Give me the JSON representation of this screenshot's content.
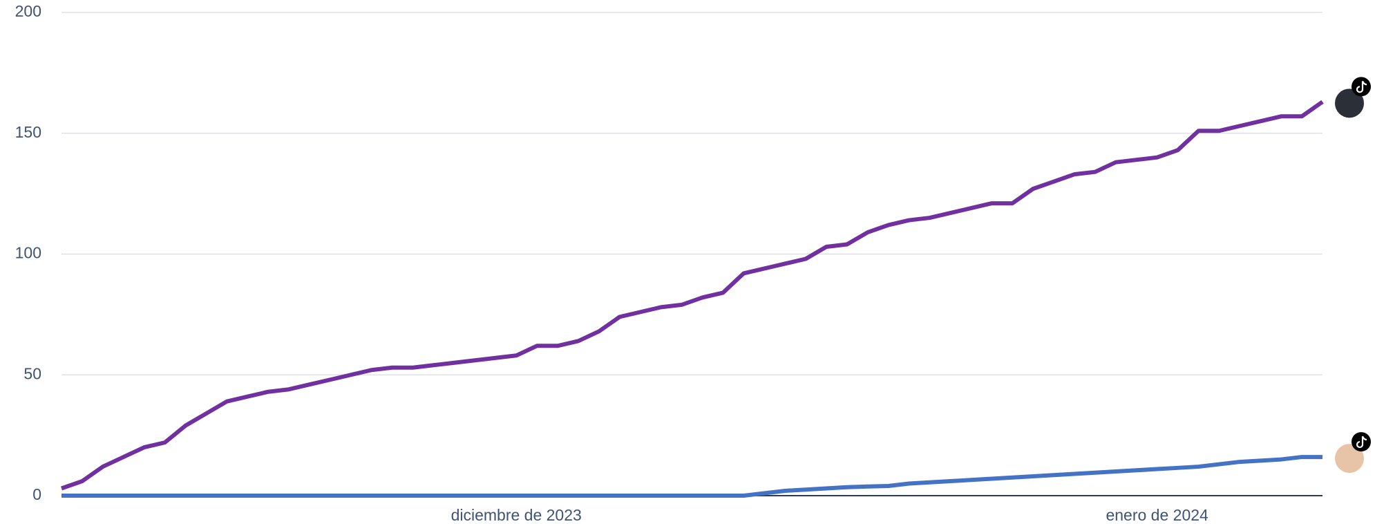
{
  "chart_data": {
    "type": "line",
    "categories": [
      null,
      null,
      null,
      null,
      null,
      null,
      null,
      null,
      null,
      null,
      null,
      null,
      null,
      null,
      null,
      null,
      null,
      null,
      null,
      null,
      null,
      null,
      "diciembre de 2023",
      null,
      null,
      null,
      null,
      null,
      null,
      null,
      null,
      null,
      null,
      null,
      null,
      null,
      null,
      null,
      null,
      null,
      null,
      null,
      null,
      null,
      null,
      null,
      null,
      null,
      null,
      null,
      null,
      null,
      null,
      "enero de 2024",
      null,
      null,
      null,
      null,
      null,
      null,
      null,
      null
    ],
    "series": [
      {
        "color": "#7030a0",
        "values": [
          3,
          6,
          12,
          16,
          20,
          22,
          29,
          34,
          39,
          41,
          43,
          44,
          46,
          48,
          50,
          52,
          53,
          53,
          54,
          55,
          56,
          57,
          58,
          62,
          62,
          64,
          68,
          74,
          76,
          78,
          79,
          82,
          84,
          92,
          94,
          96,
          98,
          103,
          104,
          109,
          112,
          114,
          115,
          117,
          119,
          121,
          121,
          127,
          130,
          133,
          134,
          138,
          139,
          140,
          143,
          151,
          151,
          153,
          155,
          157,
          157,
          163
        ]
      },
      {
        "color": "#4472c4",
        "values": [
          0,
          0,
          0,
          0,
          0,
          0,
          0,
          0,
          0,
          0,
          0,
          0,
          0,
          0,
          0,
          0,
          0,
          0,
          0,
          0,
          0,
          0,
          0,
          0,
          0,
          0,
          0,
          0,
          0,
          0,
          0,
          0,
          0,
          0,
          1,
          2,
          2.5,
          3,
          3.5,
          3.8,
          4,
          5,
          5.5,
          6,
          6.5,
          7,
          7.5,
          8,
          8.5,
          9,
          9.5,
          10,
          10.5,
          11,
          11.5,
          12,
          13,
          14,
          14.5,
          15,
          16,
          16
        ]
      }
    ],
    "ylim": [
      0,
      200
    ],
    "yticks": [
      0,
      50,
      100,
      150,
      200
    ],
    "grid": true
  }
}
